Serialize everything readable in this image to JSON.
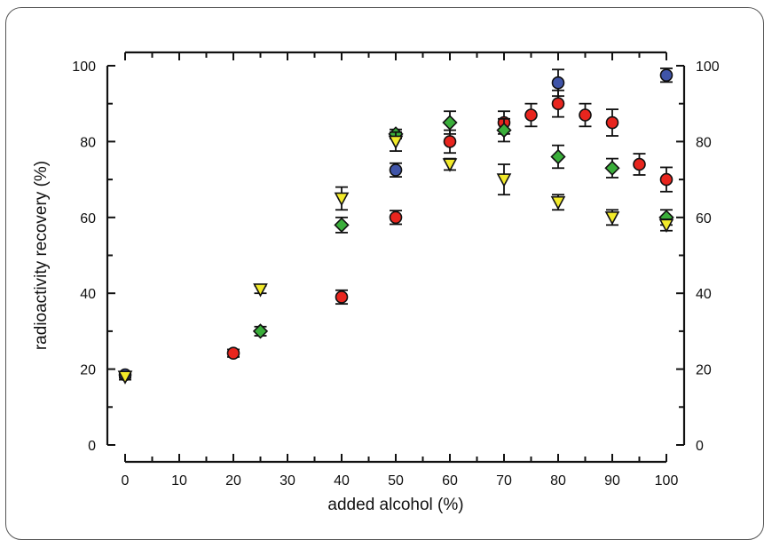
{
  "chart_data": {
    "type": "scatter",
    "title": "",
    "xlabel": "added alcohol (%)",
    "ylabel": "radioactivity recovery (%)",
    "xlim": [
      0,
      100
    ],
    "ylim": [
      0,
      100
    ],
    "x_ticks": [
      "0",
      "10",
      "20",
      "30",
      "40",
      "50",
      "60",
      "70",
      "80",
      "90",
      "100"
    ],
    "y_ticks": [
      "0",
      "20",
      "40",
      "60",
      "80",
      "100"
    ],
    "y_right_ticks": [
      "0",
      "20",
      "40",
      "60",
      "80",
      "100"
    ],
    "legend": "none",
    "grid": false,
    "series": [
      {
        "color": "#e8251e",
        "marker": "circle",
        "points": [
          {
            "x": 20,
            "y": 24.2,
            "err": 1.0
          },
          {
            "x": 40,
            "y": 39.0,
            "err": 1.8
          },
          {
            "x": 50,
            "y": 60.0,
            "err": 1.8
          },
          {
            "x": 60,
            "y": 80.0,
            "err": 3.0
          },
          {
            "x": 70,
            "y": 85.0,
            "err": 3.0
          },
          {
            "x": 75,
            "y": 87.0,
            "err": 3.0
          },
          {
            "x": 80,
            "y": 90.0,
            "err": 3.5
          },
          {
            "x": 85,
            "y": 87.0,
            "err": 3.0
          },
          {
            "x": 90,
            "y": 85.0,
            "err": 3.5
          },
          {
            "x": 95,
            "y": 74.0,
            "err": 2.8
          },
          {
            "x": 100,
            "y": 70.0,
            "err": 3.2
          }
        ]
      },
      {
        "color": "#3f54a8",
        "marker": "circle",
        "points": [
          {
            "x": 0,
            "y": 18.5,
            "err": 0.8
          },
          {
            "x": 50,
            "y": 72.5,
            "err": 1.8
          },
          {
            "x": 80,
            "y": 95.5,
            "err": 3.5
          },
          {
            "x": 100,
            "y": 97.5,
            "err": 1.8
          }
        ]
      },
      {
        "color": "#3aae3a",
        "marker": "diamond",
        "points": [
          {
            "x": 25,
            "y": 30.0,
            "err": 1.2
          },
          {
            "x": 40,
            "y": 58.0,
            "err": 2.0
          },
          {
            "x": 50,
            "y": 82.0,
            "err": 1.2
          },
          {
            "x": 60,
            "y": 85.0,
            "err": 3.0
          },
          {
            "x": 70,
            "y": 83.0,
            "err": 3.0
          },
          {
            "x": 80,
            "y": 76.0,
            "err": 3.0
          },
          {
            "x": 90,
            "y": 73.0,
            "err": 2.5
          },
          {
            "x": 100,
            "y": 60.0,
            "err": 2.0
          }
        ]
      },
      {
        "color": "#f2ea2a",
        "marker": "triangle-down",
        "points": [
          {
            "x": 0,
            "y": 18.0,
            "err": 0.8
          },
          {
            "x": 25,
            "y": 41.0,
            "err": 1.0
          },
          {
            "x": 40,
            "y": 65.0,
            "err": 3.0
          },
          {
            "x": 50,
            "y": 80.0,
            "err": 2.5
          },
          {
            "x": 60,
            "y": 74.0,
            "err": 1.5
          },
          {
            "x": 70,
            "y": 70.0,
            "err": 4.0
          },
          {
            "x": 80,
            "y": 64.0,
            "err": 2.0
          },
          {
            "x": 90,
            "y": 60.0,
            "err": 2.0
          },
          {
            "x": 100,
            "y": 58.0,
            "err": 1.5
          }
        ]
      }
    ]
  }
}
